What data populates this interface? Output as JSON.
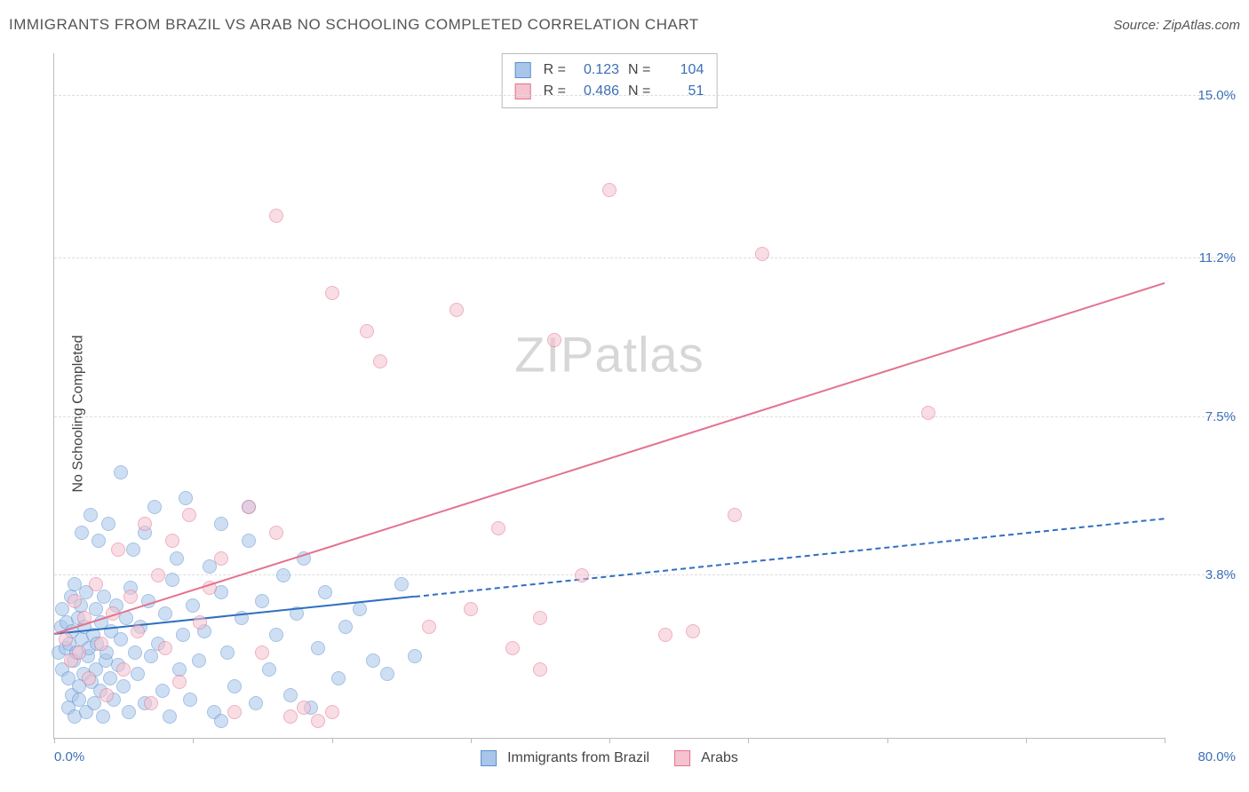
{
  "title": "IMMIGRANTS FROM BRAZIL VS ARAB NO SCHOOLING COMPLETED CORRELATION CHART",
  "source_prefix": "Source: ",
  "source_name": "ZipAtlas.com",
  "y_axis_label": "No Schooling Completed",
  "watermark_a": "ZIP",
  "watermark_b": "atlas",
  "chart": {
    "type": "scatter-with-trend",
    "background_color": "#ffffff",
    "grid_color": "#dddddd",
    "axis_color": "#bbbbbb",
    "label_color": "#3b6fb6",
    "xlim": [
      0,
      80
    ],
    "ylim": [
      0,
      16
    ],
    "x_min_label": "0.0%",
    "x_max_label": "80.0%",
    "y_grid": [
      {
        "v": 3.8,
        "label": "3.8%"
      },
      {
        "v": 7.5,
        "label": "7.5%"
      },
      {
        "v": 11.2,
        "label": "11.2%"
      },
      {
        "v": 15.0,
        "label": "15.0%"
      }
    ],
    "x_ticks": [
      0,
      10,
      20,
      30,
      40,
      50,
      60,
      70,
      80
    ],
    "point_radius": 8,
    "point_opacity": 0.55,
    "series": [
      {
        "id": "brazil",
        "label": "Immigrants from Brazil",
        "color_fill": "#a9c6ea",
        "color_stroke": "#5b8fd0",
        "trend_color": "#2f6fc0",
        "trend_solid_until_x": 26,
        "trend_dash_after": true,
        "trend_width": 2,
        "R": "0.123",
        "N": "104",
        "regression": {
          "x1": 0,
          "y1": 2.4,
          "x2": 80,
          "y2": 5.1
        },
        "points": [
          [
            0.3,
            2.0
          ],
          [
            0.5,
            2.6
          ],
          [
            0.6,
            1.6
          ],
          [
            0.6,
            3.0
          ],
          [
            0.8,
            2.1
          ],
          [
            0.9,
            2.7
          ],
          [
            1.0,
            1.4
          ],
          [
            1.0,
            0.7
          ],
          [
            1.1,
            2.2
          ],
          [
            1.2,
            3.3
          ],
          [
            1.3,
            1.0
          ],
          [
            1.3,
            2.5
          ],
          [
            1.4,
            1.8
          ],
          [
            1.5,
            0.5
          ],
          [
            1.5,
            3.6
          ],
          [
            1.6,
            2.0
          ],
          [
            1.7,
            2.8
          ],
          [
            1.8,
            1.2
          ],
          [
            1.8,
            0.9
          ],
          [
            1.9,
            3.1
          ],
          [
            2.0,
            2.3
          ],
          [
            2.0,
            4.8
          ],
          [
            2.1,
            1.5
          ],
          [
            2.2,
            2.6
          ],
          [
            2.3,
            0.6
          ],
          [
            2.3,
            3.4
          ],
          [
            2.4,
            1.9
          ],
          [
            2.5,
            2.1
          ],
          [
            2.6,
            5.2
          ],
          [
            2.7,
            1.3
          ],
          [
            2.8,
            2.4
          ],
          [
            2.9,
            0.8
          ],
          [
            3.0,
            3.0
          ],
          [
            3.0,
            1.6
          ],
          [
            3.1,
            2.2
          ],
          [
            3.2,
            4.6
          ],
          [
            3.3,
            1.1
          ],
          [
            3.4,
            2.7
          ],
          [
            3.5,
            0.5
          ],
          [
            3.6,
            3.3
          ],
          [
            3.7,
            1.8
          ],
          [
            3.8,
            2.0
          ],
          [
            3.9,
            5.0
          ],
          [
            4.0,
            1.4
          ],
          [
            4.1,
            2.5
          ],
          [
            4.3,
            0.9
          ],
          [
            4.5,
            3.1
          ],
          [
            4.6,
            1.7
          ],
          [
            4.8,
            6.2
          ],
          [
            4.8,
            2.3
          ],
          [
            5.0,
            1.2
          ],
          [
            5.2,
            2.8
          ],
          [
            5.4,
            0.6
          ],
          [
            5.5,
            3.5
          ],
          [
            5.7,
            4.4
          ],
          [
            5.8,
            2.0
          ],
          [
            6.0,
            1.5
          ],
          [
            6.2,
            2.6
          ],
          [
            6.5,
            4.8
          ],
          [
            6.5,
            0.8
          ],
          [
            6.8,
            3.2
          ],
          [
            7.0,
            1.9
          ],
          [
            7.2,
            5.4
          ],
          [
            7.5,
            2.2
          ],
          [
            7.8,
            1.1
          ],
          [
            8.0,
            2.9
          ],
          [
            8.3,
            0.5
          ],
          [
            8.5,
            3.7
          ],
          [
            8.8,
            4.2
          ],
          [
            9.0,
            1.6
          ],
          [
            9.3,
            2.4
          ],
          [
            9.5,
            5.6
          ],
          [
            9.8,
            0.9
          ],
          [
            10.0,
            3.1
          ],
          [
            10.4,
            1.8
          ],
          [
            10.8,
            2.5
          ],
          [
            11.2,
            4.0
          ],
          [
            11.5,
            0.6
          ],
          [
            12.0,
            3.4
          ],
          [
            12.0,
            5.0
          ],
          [
            12.5,
            2.0
          ],
          [
            13.0,
            1.2
          ],
          [
            13.5,
            2.8
          ],
          [
            14.0,
            4.6
          ],
          [
            14.0,
            5.4
          ],
          [
            14.5,
            0.8
          ],
          [
            15.0,
            3.2
          ],
          [
            15.5,
            1.6
          ],
          [
            16.0,
            2.4
          ],
          [
            16.5,
            3.8
          ],
          [
            17.0,
            1.0
          ],
          [
            17.5,
            2.9
          ],
          [
            18.0,
            4.2
          ],
          [
            18.5,
            0.7
          ],
          [
            19.0,
            2.1
          ],
          [
            19.5,
            3.4
          ],
          [
            20.5,
            1.4
          ],
          [
            21.0,
            2.6
          ],
          [
            22.0,
            3.0
          ],
          [
            23.0,
            1.8
          ],
          [
            24.0,
            1.5
          ],
          [
            25.0,
            3.6
          ],
          [
            26.0,
            1.9
          ],
          [
            12.0,
            0.4
          ]
        ]
      },
      {
        "id": "arabs",
        "label": "Arabs",
        "color_fill": "#f4c3cf",
        "color_stroke": "#e4718f",
        "trend_color": "#e4718f",
        "trend_solid_until_x": 80,
        "trend_dash_after": false,
        "trend_width": 2.5,
        "R": "0.486",
        "N": "51",
        "regression": {
          "x1": 0,
          "y1": 2.4,
          "x2": 80,
          "y2": 10.6
        },
        "points": [
          [
            0.8,
            2.3
          ],
          [
            1.2,
            1.8
          ],
          [
            1.5,
            3.2
          ],
          [
            1.8,
            2.0
          ],
          [
            2.2,
            2.8
          ],
          [
            2.5,
            1.4
          ],
          [
            3.0,
            3.6
          ],
          [
            3.4,
            2.2
          ],
          [
            3.8,
            1.0
          ],
          [
            4.2,
            2.9
          ],
          [
            4.6,
            4.4
          ],
          [
            5.0,
            1.6
          ],
          [
            5.5,
            3.3
          ],
          [
            6.0,
            2.5
          ],
          [
            6.5,
            5.0
          ],
          [
            7.0,
            0.8
          ],
          [
            7.5,
            3.8
          ],
          [
            8.0,
            2.1
          ],
          [
            8.5,
            4.6
          ],
          [
            9.0,
            1.3
          ],
          [
            9.7,
            5.2
          ],
          [
            10.5,
            2.7
          ],
          [
            11.2,
            3.5
          ],
          [
            12.0,
            4.2
          ],
          [
            13.0,
            0.6
          ],
          [
            14.0,
            5.4
          ],
          [
            15.0,
            2.0
          ],
          [
            16.0,
            4.8
          ],
          [
            17.0,
            0.5
          ],
          [
            18.0,
            0.7
          ],
          [
            16.0,
            12.2
          ],
          [
            20.0,
            10.4
          ],
          [
            22.5,
            9.5
          ],
          [
            23.5,
            8.8
          ],
          [
            19.0,
            0.4
          ],
          [
            20.0,
            0.6
          ],
          [
            29.0,
            10.0
          ],
          [
            32.0,
            4.9
          ],
          [
            35.0,
            1.6
          ],
          [
            36.0,
            9.3
          ],
          [
            38.0,
            3.8
          ],
          [
            40.0,
            12.8
          ],
          [
            44.0,
            2.4
          ],
          [
            46.0,
            2.5
          ],
          [
            49.0,
            5.2
          ],
          [
            51.0,
            11.3
          ],
          [
            63.0,
            7.6
          ],
          [
            35.0,
            2.8
          ],
          [
            27.0,
            2.6
          ],
          [
            30.0,
            3.0
          ],
          [
            33.0,
            2.1
          ]
        ]
      }
    ]
  },
  "stats_labels": {
    "R": "R =",
    "N": "N ="
  }
}
